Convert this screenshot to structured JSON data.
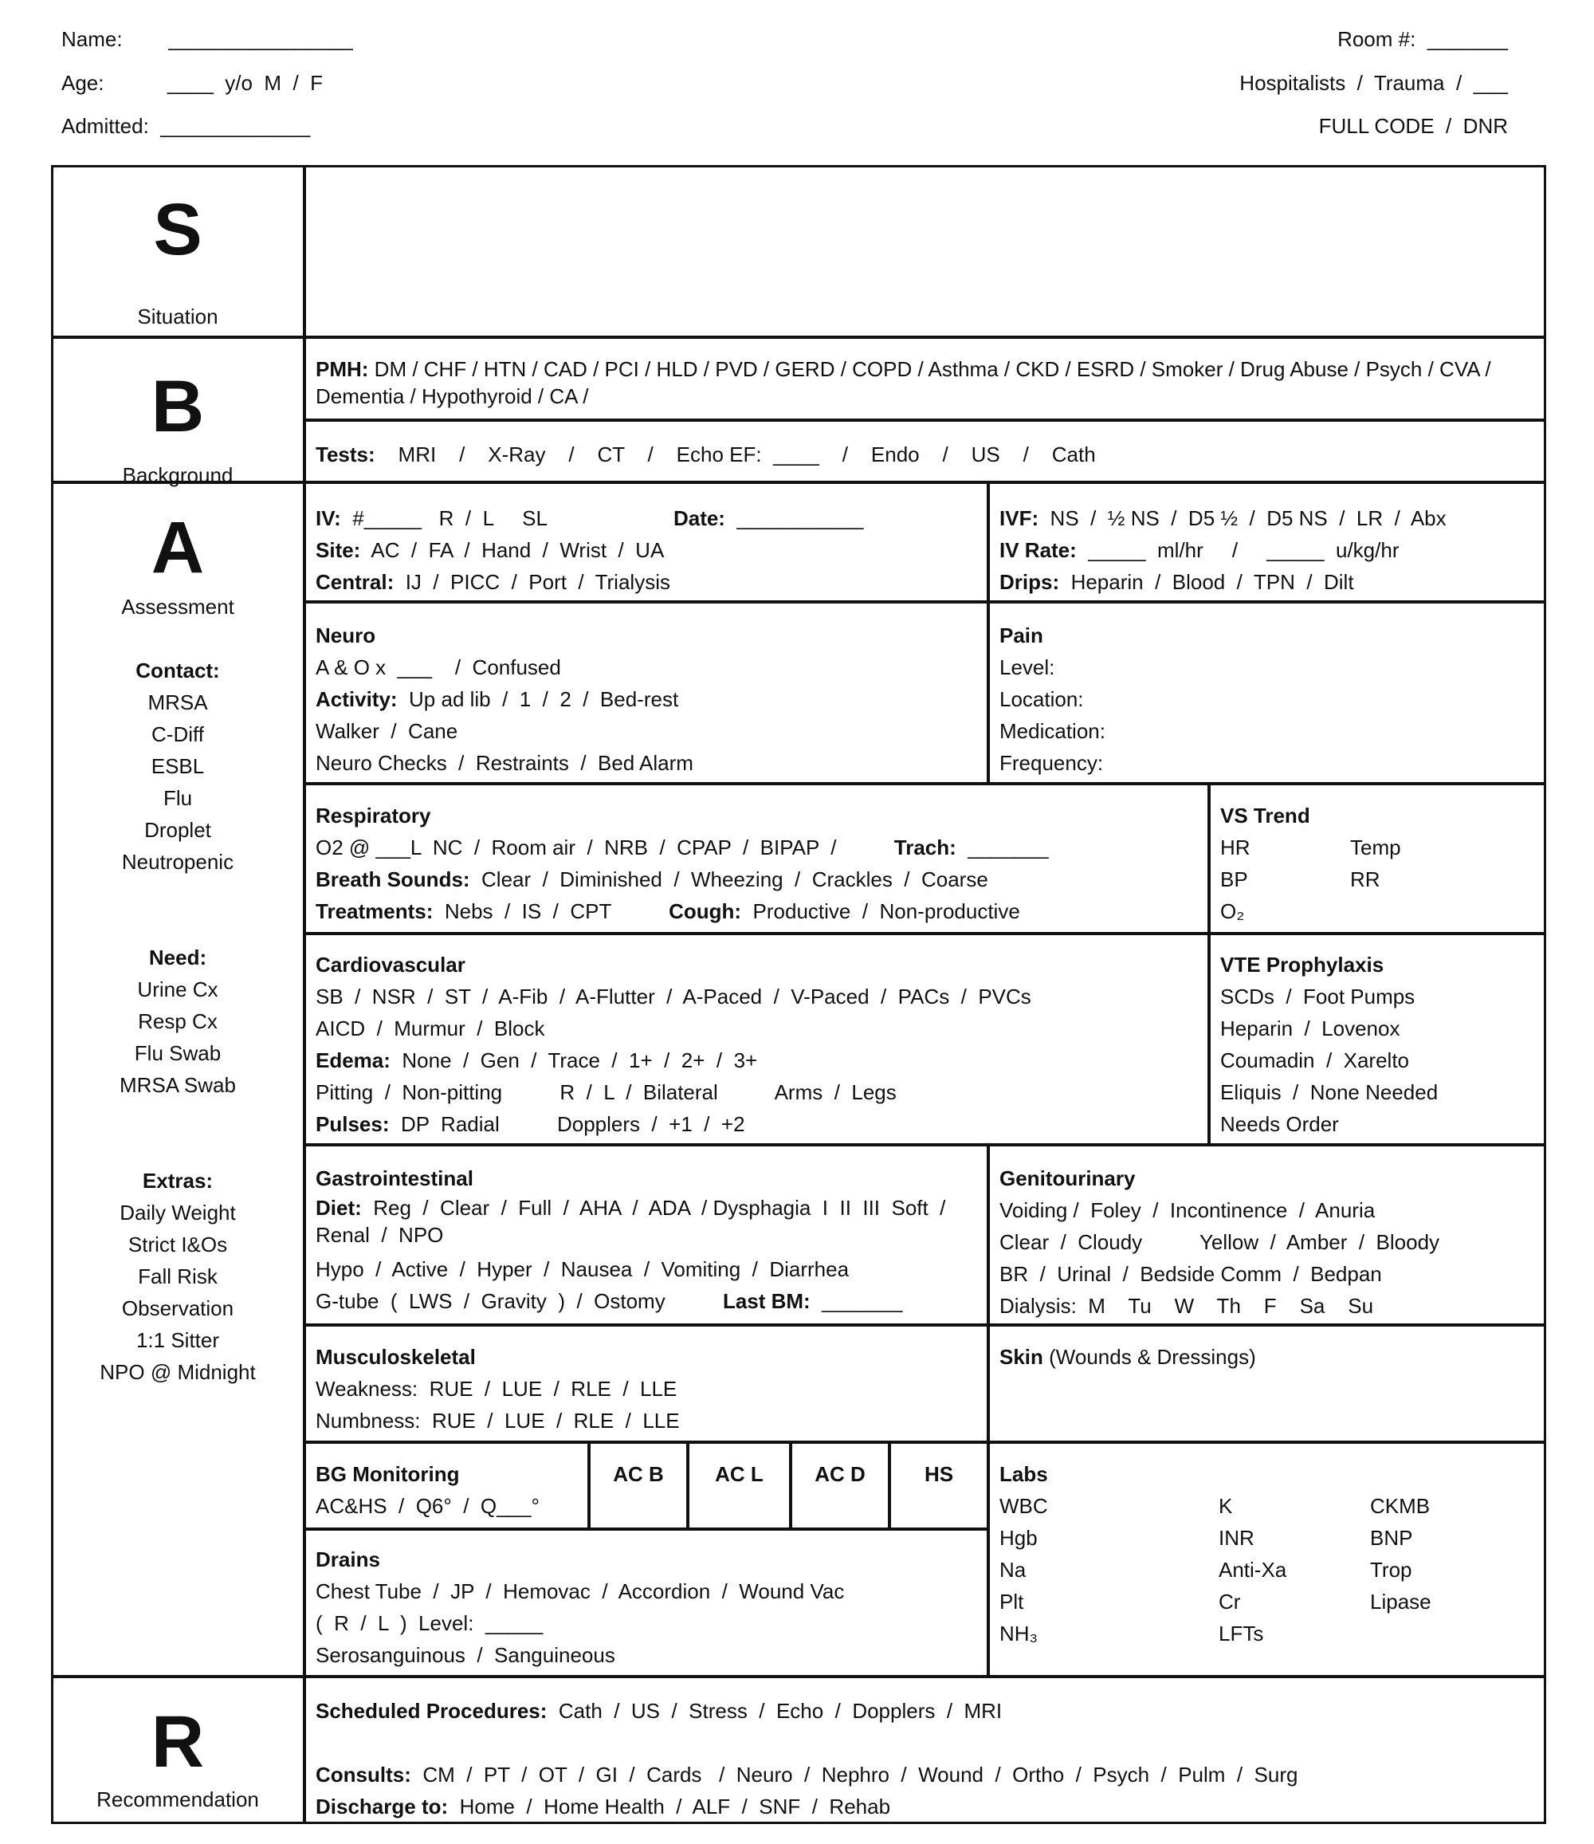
{
  "header": {
    "name": "Name:        ________________",
    "age": "Age:           ____  y/o  M  /  F",
    "admitted": "Admitted:  _____________",
    "room": "Room #:  _______",
    "service": "Hospitalists  /  Trauma  /  ___",
    "code": "FULL CODE  /  DNR"
  },
  "sbar": {
    "s": {
      "letter": "S",
      "label": "Situation"
    },
    "b": {
      "letter": "B",
      "label": "Background"
    },
    "a": {
      "letter": "A",
      "label": "Assessment"
    },
    "r": {
      "letter": "R",
      "label": "Recommendation"
    }
  },
  "assessment_sidebar": {
    "contact": {
      "title": "Contact:",
      "items": [
        "MRSA",
        "C-Diff",
        "ESBL",
        "Flu",
        "Droplet",
        "Neutropenic"
      ]
    },
    "need": {
      "title": "Need:",
      "items": [
        "Urine Cx",
        "Resp Cx",
        "Flu Swab",
        "MRSA Swab"
      ]
    },
    "extras": {
      "title": "Extras:",
      "items": [
        "Daily Weight",
        "Strict I&Os",
        "Fall Risk",
        "Observation",
        "1:1 Sitter",
        "NPO @ Midnight"
      ]
    }
  },
  "cells": {
    "pmh": {
      "lines": [
        [
          {
            "bold": "PMH:"
          },
          {
            "text": "  DM  /  CHF  /  HTN  /  CAD  /  PCI  /  HLD  /  PVD  /  GERD  /  COPD  /  Asthma  /  CKD  /  ESRD  /  Smoker  /  Drug Abuse  /  Psych  /  CVA  /  Dementia  /  Hypothyroid  /  CA  /"
          }
        ]
      ],
      "wrap": true
    },
    "tests": {
      "lines": [
        [
          {
            "bold": "Tests:"
          },
          {
            "text": "    MRI    /    X-Ray    /    CT    /    Echo EF:  ____    /    Endo    /    US    /    Cath"
          }
        ]
      ]
    },
    "iv": {
      "lines": [
        [
          {
            "bold": "IV:"
          },
          {
            "text": "  #_____   R  /  L     SL                      "
          },
          {
            "bold": "Date:"
          },
          {
            "text": "  ___________"
          }
        ],
        [
          {
            "bold": "Site:"
          },
          {
            "text": "  AC  /  FA  /  Hand  /  Wrist  /  UA"
          }
        ],
        [
          {
            "bold": "Central:"
          },
          {
            "text": "  IJ  /  PICC  /  Port  /  Trialysis"
          }
        ]
      ]
    },
    "ivf": {
      "lines": [
        [
          {
            "bold": "IVF:"
          },
          {
            "text": "  NS  /  ½ NS  /  D5 ½  /  D5 NS  /  LR  /  Abx"
          }
        ],
        [
          {
            "bold": "IV Rate:"
          },
          {
            "text": "  _____  ml/hr     /     _____  u/kg/hr"
          }
        ],
        [
          {
            "bold": "Drips:"
          },
          {
            "text": "  Heparin  /  Blood  /  TPN  /  Dilt"
          }
        ]
      ]
    },
    "neuro": {
      "title": "Neuro",
      "lines": [
        [
          {
            "text": "A & O x  ___    /  Confused"
          }
        ],
        [
          {
            "bold": "Activity:"
          },
          {
            "text": "  Up ad lib  /  1  /  2  /  Bed-rest"
          }
        ],
        [
          {
            "text": "Walker  /  Cane"
          }
        ],
        [
          {
            "text": "Neuro Checks  /  Restraints  /  Bed Alarm"
          }
        ]
      ]
    },
    "pain": {
      "title": "Pain",
      "lines": [
        [
          {
            "text": "Level:"
          }
        ],
        [
          {
            "text": "Location:"
          }
        ],
        [
          {
            "text": "Medication:"
          }
        ],
        [
          {
            "text": "Frequency:"
          }
        ]
      ]
    },
    "respiratory": {
      "title": "Respiratory",
      "lines": [
        [
          {
            "text": "O2 @ ___L  NC  /  Room air  /  NRB  /  CPAP  /  BIPAP  /          "
          },
          {
            "bold": "Trach:"
          },
          {
            "text": "  _______"
          }
        ],
        [
          {
            "bold": "Breath Sounds:"
          },
          {
            "text": "  Clear  /  Diminished  /  Wheezing  /  Crackles  /  Coarse"
          }
        ],
        [
          {
            "bold": "Treatments:"
          },
          {
            "text": "  Nebs  /  IS  /  CPT          "
          },
          {
            "bold": "Cough:"
          },
          {
            "text": "  Productive  /  Non-productive"
          }
        ]
      ]
    },
    "vs_trend": {
      "title": "VS Trend",
      "rows": [
        [
          "HR",
          "Temp"
        ],
        [
          "BP",
          "RR"
        ],
        [
          "O₂",
          ""
        ]
      ]
    },
    "cardiovascular": {
      "title": "Cardiovascular",
      "lines": [
        [
          {
            "text": "SB  /  NSR  /  ST  /  A-Fib  /  A-Flutter  /  A-Paced  /  V-Paced  /  PACs  /  PVCs"
          }
        ],
        [
          {
            "text": "AICD  /  Murmur  /  Block"
          }
        ],
        [
          {
            "bold": "Edema:"
          },
          {
            "text": "  None  /  Gen  /  Trace  /  1+  /  2+  /  3+"
          }
        ],
        [
          {
            "text": "Pitting  /  Non-pitting          R  /  L  /  Bilateral          Arms  /  Legs"
          }
        ],
        [
          {
            "bold": "Pulses:"
          },
          {
            "text": "  DP  Radial          Dopplers  /  +1  /  +2"
          }
        ]
      ]
    },
    "vte": {
      "title": "VTE Prophylaxis",
      "lines": [
        [
          {
            "text": "SCDs  /  Foot Pumps"
          }
        ],
        [
          {
            "text": "Heparin  /  Lovenox"
          }
        ],
        [
          {
            "text": "Coumadin  /  Xarelto"
          }
        ],
        [
          {
            "text": "Eliquis  /  None Needed"
          }
        ],
        [
          {
            "text": "Needs Order"
          }
        ]
      ]
    },
    "gi": {
      "title": "Gastrointestinal",
      "lines": [
        [
          {
            "bold": "Diet:"
          },
          {
            "text": "  Reg  /  Clear  /  Full  /  AHA  /  ADA  / Dysphagia  I  II  III  Soft  /"
          }
        ],
        [
          {
            "text": "Renal  /  NPO"
          }
        ],
        [
          {
            "text": "Hypo  /  Active  /  Hyper  /  Nausea  /  Vomiting  /  Diarrhea"
          }
        ],
        [
          {
            "text": "G-tube  (  LWS  /  Gravity  )  /  Ostomy          "
          },
          {
            "bold": "Last BM:"
          },
          {
            "text": "  _______"
          }
        ]
      ]
    },
    "gu": {
      "title": "Genitourinary",
      "lines": [
        [
          {
            "text": "Voiding /  Foley  /  Incontinence  /  Anuria"
          }
        ],
        [
          {
            "text": "Clear  /  Cloudy          Yellow  /  Amber  /  Bloody"
          }
        ],
        [
          {
            "text": "BR  /  Urinal  /  Bedside Comm  /  Bedpan"
          }
        ],
        [
          {
            "text": "Dialysis:  M    Tu    W    Th    F    Sa    Su"
          }
        ]
      ]
    },
    "msk": {
      "title": "Musculoskeletal",
      "lines": [
        [
          {
            "text": "Weakness:  RUE  /  LUE  /  RLE  /  LLE"
          }
        ],
        [
          {
            "text": "Numbness:  RUE  /  LUE  /  RLE  /  LLE"
          }
        ]
      ]
    },
    "skin": {
      "title": "Skin",
      "subtitle": " (Wounds & Dressings)"
    },
    "bg": {
      "title": "BG Monitoring",
      "lines": [
        [
          {
            "text": "AC&HS  /  Q6°  /  Q___°"
          }
        ]
      ]
    },
    "bg_times": [
      "AC B",
      "AC L",
      "AC D",
      "HS"
    ],
    "drains": {
      "title": "Drains",
      "lines": [
        [
          {
            "text": "Chest Tube  /  JP  /  Hemovac  /  Accordion  /  Wound Vac"
          }
        ],
        [
          {
            "text": "(  R  /  L  )  Level:  _____"
          }
        ],
        [
          {
            "text": "Serosanguinous  /  Sanguineous"
          }
        ]
      ]
    },
    "labs": {
      "title": "Labs",
      "columns": [
        [
          "WBC",
          "Hgb",
          "Na",
          "Plt",
          "NH₃"
        ],
        [
          "K",
          "INR",
          "Anti-Xa",
          "Cr",
          "LFTs"
        ],
        [
          "CKMB",
          "BNP",
          "Trop",
          "Lipase"
        ]
      ]
    },
    "recommendation": {
      "lines": [
        [
          {
            "bold": "Scheduled Procedures:"
          },
          {
            "text": "  Cath  /  US  /  Stress  /  Echo  /  Dopplers  /  MRI"
          }
        ],
        [
          {
            "text": " "
          }
        ],
        [
          {
            "bold": "Consults:"
          },
          {
            "text": "  CM  /  PT  /  OT  /  GI  /  Cards   /  Neuro  /  Nephro  /  Wound  /  Ortho  /  Psych  /  Pulm  /  Surg"
          }
        ],
        [
          {
            "bold": "Discharge to:"
          },
          {
            "text": "  Home  /  Home Health  /  ALF  /  SNF  /  Rehab"
          }
        ]
      ]
    }
  }
}
